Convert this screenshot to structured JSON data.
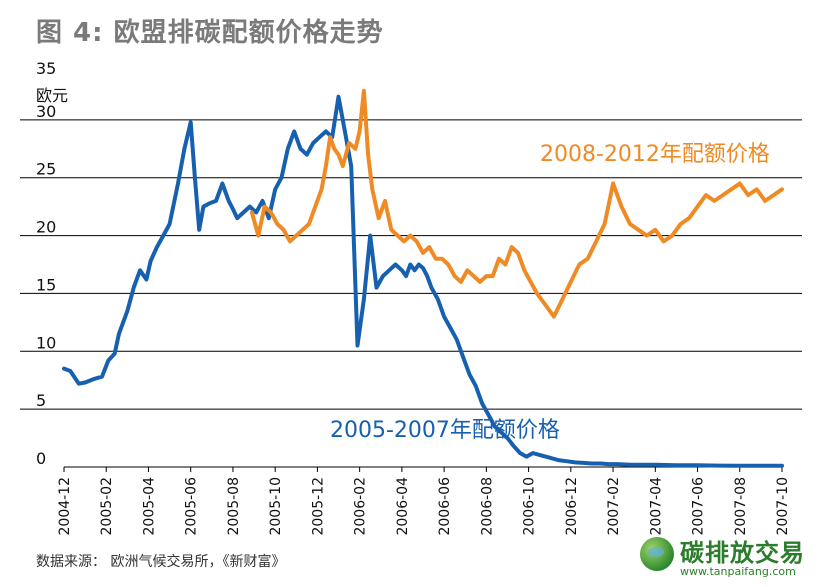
{
  "title": "图 4: 欧盟排碳配额价格走势",
  "source": "数据来源： 欧洲气候交易所，《新财富》",
  "logo": {
    "name": "碳排放交易",
    "url": "www.tanpaifang.com"
  },
  "colors": {
    "series_2005_2007": "#1760b0",
    "series_2008_2012": "#f08a24",
    "grid": "#000000"
  },
  "chart_data": {
    "type": "line",
    "title": "",
    "ylabel": "欧元",
    "xlabel": "",
    "ylim": [
      0,
      35
    ],
    "yticks": [
      0,
      5,
      10,
      15,
      20,
      25,
      30,
      35
    ],
    "x_ticks": [
      "2004-12",
      "2005-02",
      "2005-04",
      "2005-06",
      "2005-08",
      "2005-10",
      "2005-12",
      "2006-02",
      "2006-04",
      "2006-06",
      "2006-08",
      "2006-10",
      "2006-12",
      "2007-02",
      "2007-04",
      "2007-06",
      "2007-08",
      "2007-10"
    ],
    "grid": true,
    "series": [
      {
        "name": "2005-2007年配额价格",
        "color": "#1760b0",
        "x": [
          0,
          0.15,
          0.35,
          0.5,
          0.7,
          0.9,
          1.05,
          1.2,
          1.3,
          1.5,
          1.65,
          1.8,
          1.95,
          2.05,
          2.2,
          2.35,
          2.5,
          2.7,
          2.85,
          3.0,
          3.1,
          3.2,
          3.3,
          3.45,
          3.6,
          3.75,
          3.9,
          4.0,
          4.1,
          4.25,
          4.4,
          4.55,
          4.7,
          4.85,
          5.0,
          5.15,
          5.3,
          5.45,
          5.6,
          5.75,
          5.9,
          6.05,
          6.2,
          6.35,
          6.5,
          6.65,
          6.8,
          6.95,
          7.1,
          7.25,
          7.4,
          7.55,
          7.7,
          7.85,
          8.0,
          8.1,
          8.2,
          8.3,
          8.4,
          8.5,
          8.6,
          8.7,
          8.85,
          9.0,
          9.15,
          9.3,
          9.45,
          9.6,
          9.75,
          9.9,
          10.05,
          10.2,
          10.35,
          10.5,
          10.65,
          10.8,
          10.95,
          11.1,
          11.3,
          11.5,
          11.7,
          11.9,
          12.1,
          12.3,
          12.5,
          12.7,
          12.9,
          13.1,
          13.4,
          13.7,
          14.0,
          14.5,
          15.0,
          15.5,
          16.0,
          16.5,
          17.0
        ],
        "values": [
          8.5,
          8.3,
          7.2,
          7.3,
          7.6,
          7.8,
          9.2,
          9.8,
          11.5,
          13.5,
          15.5,
          17.0,
          16.2,
          17.8,
          19.0,
          20.0,
          21.0,
          24.5,
          27.5,
          29.8,
          25.0,
          20.5,
          22.5,
          22.8,
          23.0,
          24.5,
          23.0,
          22.3,
          21.5,
          22.0,
          22.5,
          22.0,
          23.0,
          21.5,
          24.0,
          25.0,
          27.5,
          29.0,
          27.5,
          27.0,
          28.0,
          28.5,
          29.0,
          28.5,
          32.0,
          29.0,
          26.0,
          10.5,
          14.5,
          20.0,
          15.5,
          16.5,
          17.0,
          17.5,
          17.0,
          16.5,
          17.5,
          17.0,
          17.5,
          17.2,
          16.5,
          15.5,
          14.5,
          13.0,
          12.0,
          11.0,
          9.5,
          8.0,
          7.0,
          5.5,
          4.5,
          3.5,
          3.0,
          2.5,
          1.8,
          1.2,
          0.9,
          1.2,
          1.0,
          0.8,
          0.6,
          0.5,
          0.4,
          0.35,
          0.3,
          0.3,
          0.25,
          0.25,
          0.2,
          0.2,
          0.2,
          0.15,
          0.15,
          0.12,
          0.1,
          0.1,
          0.1
        ]
      },
      {
        "name": "2008-2012年配额价格",
        "color": "#f08a24",
        "x": [
          4.45,
          4.6,
          4.75,
          4.9,
          5.05,
          5.2,
          5.35,
          5.5,
          5.65,
          5.8,
          5.95,
          6.1,
          6.2,
          6.3,
          6.4,
          6.5,
          6.6,
          6.75,
          6.9,
          7.0,
          7.1,
          7.2,
          7.3,
          7.45,
          7.6,
          7.75,
          7.9,
          8.05,
          8.2,
          8.35,
          8.5,
          8.65,
          8.8,
          8.95,
          9.1,
          9.25,
          9.4,
          9.55,
          9.7,
          9.85,
          10.0,
          10.15,
          10.3,
          10.45,
          10.6,
          10.75,
          10.9,
          11.05,
          11.2,
          11.4,
          11.6,
          11.8,
          12.0,
          12.2,
          12.4,
          12.6,
          12.8,
          13.0,
          13.2,
          13.4,
          13.6,
          13.8,
          14.0,
          14.2,
          14.4,
          14.6,
          14.8,
          15.0,
          15.2,
          15.4,
          15.6,
          15.8,
          16.0,
          16.2,
          16.4,
          16.6,
          16.8,
          17.0
        ],
        "values": [
          22.0,
          20.0,
          22.5,
          22.0,
          21.0,
          20.5,
          19.5,
          20.0,
          20.5,
          21.0,
          22.5,
          24.0,
          26.0,
          28.5,
          27.5,
          27.0,
          26.0,
          28.0,
          27.5,
          29.0,
          32.5,
          27.0,
          24.0,
          21.5,
          23.0,
          20.5,
          20.0,
          19.5,
          20.0,
          19.5,
          18.5,
          19.0,
          18.0,
          18.0,
          17.5,
          16.5,
          16.0,
          17.0,
          16.5,
          16.0,
          16.5,
          16.5,
          18.0,
          17.5,
          19.0,
          18.5,
          17.0,
          16.0,
          15.0,
          14.0,
          13.0,
          14.5,
          16.0,
          17.5,
          18.0,
          19.5,
          21.0,
          24.5,
          22.5,
          21.0,
          20.5,
          20.0,
          20.5,
          19.5,
          20.0,
          21.0,
          21.5,
          22.5,
          23.5,
          23.0,
          23.5,
          24.0,
          24.5,
          23.5,
          24.0,
          23.0,
          23.5,
          24.0
        ]
      }
    ]
  }
}
